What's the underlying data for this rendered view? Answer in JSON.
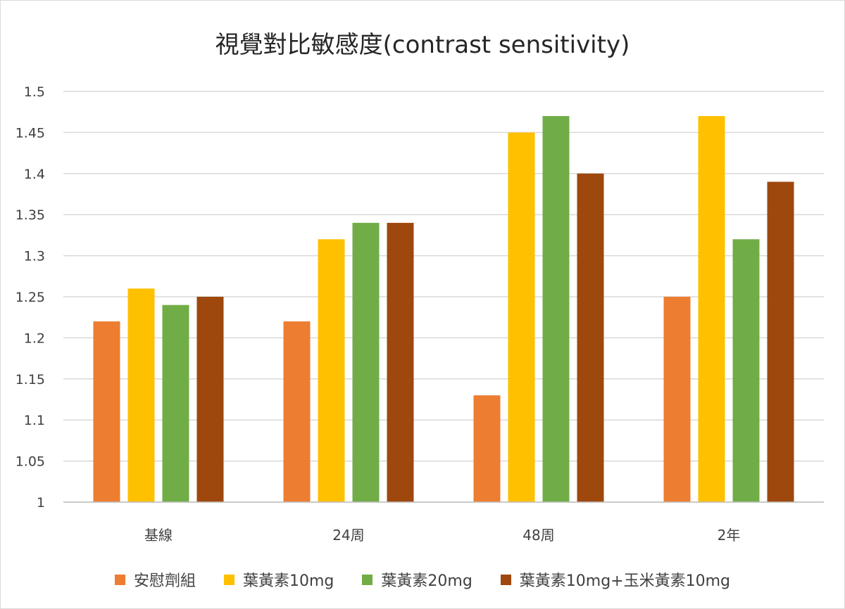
{
  "chart_data": {
    "type": "bar",
    "title": "視覺對比敏感度(contrast sensitivity)",
    "xlabel": "",
    "ylabel": "",
    "categories": [
      "基線",
      "24周",
      "48周",
      "2年"
    ],
    "ylim": [
      1,
      1.5
    ],
    "yticks": [
      "1",
      "1.05",
      "1.1",
      "1.15",
      "1.2",
      "1.25",
      "1.3",
      "1.35",
      "1.4",
      "1.45",
      "1.5"
    ],
    "grid": true,
    "legend_position": "bottom",
    "series": [
      {
        "name": "安慰劑組",
        "color": "#ed7d31",
        "values": [
          1.22,
          1.22,
          1.13,
          1.25
        ]
      },
      {
        "name": "葉黃素10mg",
        "color": "#ffc000",
        "values": [
          1.26,
          1.32,
          1.45,
          1.47
        ]
      },
      {
        "name": "葉黃素20mg",
        "color": "#70ad47",
        "values": [
          1.24,
          1.34,
          1.47,
          1.32
        ]
      },
      {
        "name": "葉黃素10mg+玉米黃素10mg",
        "color": "#9e480e",
        "values": [
          1.25,
          1.34,
          1.4,
          1.39
        ]
      }
    ]
  }
}
